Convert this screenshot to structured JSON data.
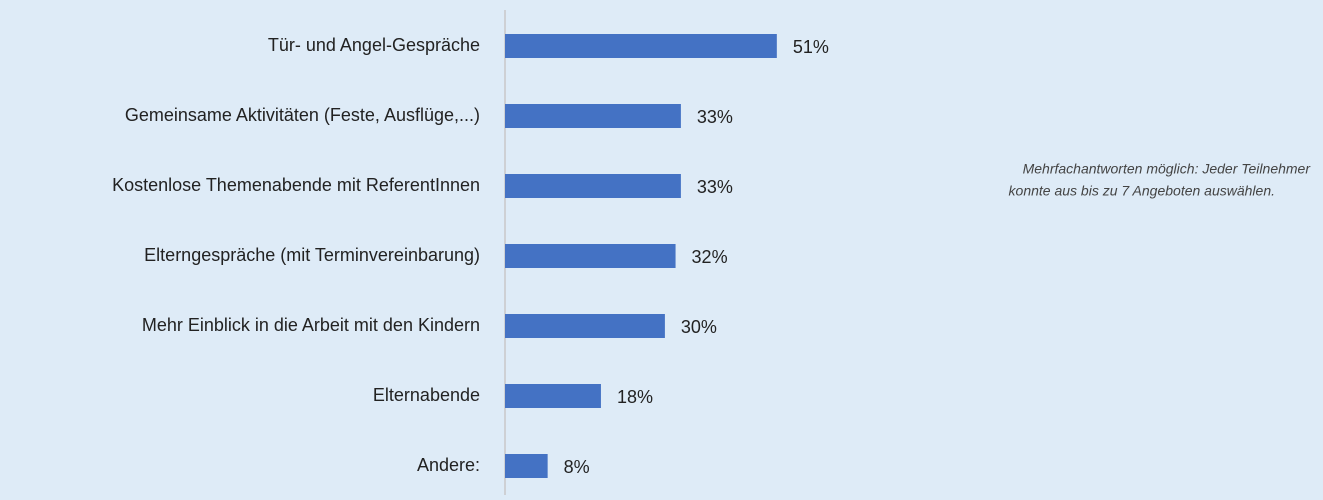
{
  "chart_data": {
    "type": "bar",
    "orientation": "horizontal",
    "categories": [
      "Tür- und Angel-Gespräche",
      "Gemeinsame Aktivitäten (Feste, Ausflüge,...)",
      "Kostenlose Themenabende mit ReferentInnen",
      "Elterngespräche (mit Terminvereinbarung)",
      "Mehr Einblick in die Arbeit mit den Kindern",
      "Elternabende",
      "Andere:"
    ],
    "values": [
      51,
      33,
      33,
      32,
      30,
      18,
      8
    ],
    "value_labels": [
      "51%",
      "33%",
      "33%",
      "32%",
      "30%",
      "18%",
      "8%"
    ],
    "color": "#4472c4",
    "annotation": [
      "Mehrfachantworten möglich: Jeder Teilnehmer",
      "konnte aus bis zu 7 Angeboten auswählen."
    ]
  }
}
